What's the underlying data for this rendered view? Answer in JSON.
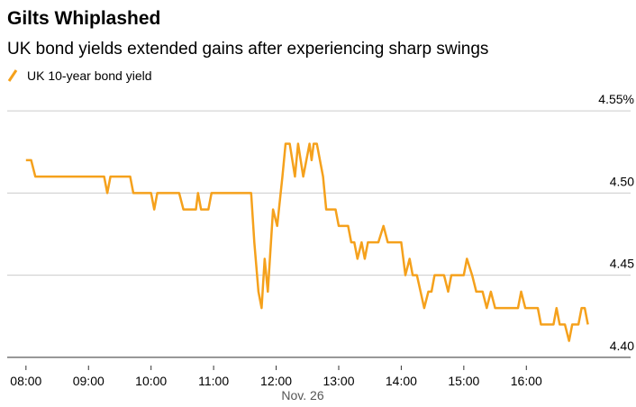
{
  "chart_data": {
    "type": "line",
    "title": "Gilts Whiplashed",
    "subtitle": "UK bond yields extended gains after experiencing sharp swings",
    "x_label": "Nov. 26",
    "x": [
      "08:00",
      "08:05",
      "08:09",
      "09:15",
      "09:18",
      "09:21",
      "09:40",
      "09:43",
      "10:00",
      "10:03",
      "10:06",
      "10:27",
      "10:31",
      "10:43",
      "10:45",
      "10:48",
      "10:55",
      "10:58",
      "11:36",
      "11:39",
      "11:43",
      "11:46",
      "11:49",
      "11:52",
      "11:57",
      "12:01",
      "12:06",
      "12:09",
      "12:13",
      "12:18",
      "12:21",
      "12:26",
      "12:32",
      "12:34",
      "12:36",
      "12:39",
      "12:45",
      "12:48",
      "12:57",
      "13:00",
      "13:09",
      "13:12",
      "13:15",
      "13:18",
      "13:22",
      "13:25",
      "13:28",
      "13:38",
      "13:43",
      "13:47",
      "14:00",
      "14:04",
      "14:08",
      "14:11",
      "14:15",
      "14:22",
      "14:26",
      "14:29",
      "14:32",
      "14:41",
      "14:45",
      "14:48",
      "15:00",
      "15:03",
      "15:08",
      "15:12",
      "15:18",
      "15:22",
      "15:26",
      "15:30",
      "15:52",
      "15:55",
      "15:59",
      "16:11",
      "16:14",
      "16:26",
      "16:29",
      "16:32",
      "16:37",
      "16:41",
      "16:44",
      "16:50",
      "16:53",
      "16:56",
      "16:59"
    ],
    "series": [
      {
        "name": "UK 10-year bond yield",
        "color": "#f5a11c",
        "values": [
          4.52,
          4.52,
          4.51,
          4.51,
          4.5,
          4.51,
          4.51,
          4.5,
          4.5,
          4.49,
          4.5,
          4.5,
          4.49,
          4.49,
          4.5,
          4.49,
          4.49,
          4.5,
          4.5,
          4.47,
          4.44,
          4.43,
          4.46,
          4.44,
          4.49,
          4.48,
          4.51,
          4.53,
          4.53,
          4.51,
          4.53,
          4.51,
          4.53,
          4.52,
          4.53,
          4.53,
          4.51,
          4.49,
          4.49,
          4.48,
          4.48,
          4.47,
          4.47,
          4.46,
          4.47,
          4.46,
          4.47,
          4.47,
          4.48,
          4.47,
          4.47,
          4.45,
          4.46,
          4.45,
          4.45,
          4.43,
          4.44,
          4.44,
          4.45,
          4.45,
          4.44,
          4.45,
          4.45,
          4.46,
          4.45,
          4.44,
          4.44,
          4.43,
          4.44,
          4.43,
          4.43,
          4.44,
          4.43,
          4.43,
          4.42,
          4.42,
          4.43,
          4.42,
          4.42,
          4.41,
          4.42,
          4.42,
          4.43,
          4.43,
          4.42
        ]
      }
    ],
    "xlim": [
      "07:42",
      "17:40"
    ],
    "xticks": [
      "08:00",
      "09:00",
      "10:00",
      "11:00",
      "12:00",
      "13:00",
      "14:00",
      "15:00",
      "16:00"
    ],
    "ylim": [
      4.395,
      4.555
    ],
    "yticks": [
      {
        "value": 4.55,
        "label": "4.55%"
      },
      {
        "value": 4.5,
        "label": "4.50"
      },
      {
        "value": 4.45,
        "label": "4.45"
      },
      {
        "value": 4.4,
        "label": "4.40"
      }
    ],
    "grid": true
  }
}
